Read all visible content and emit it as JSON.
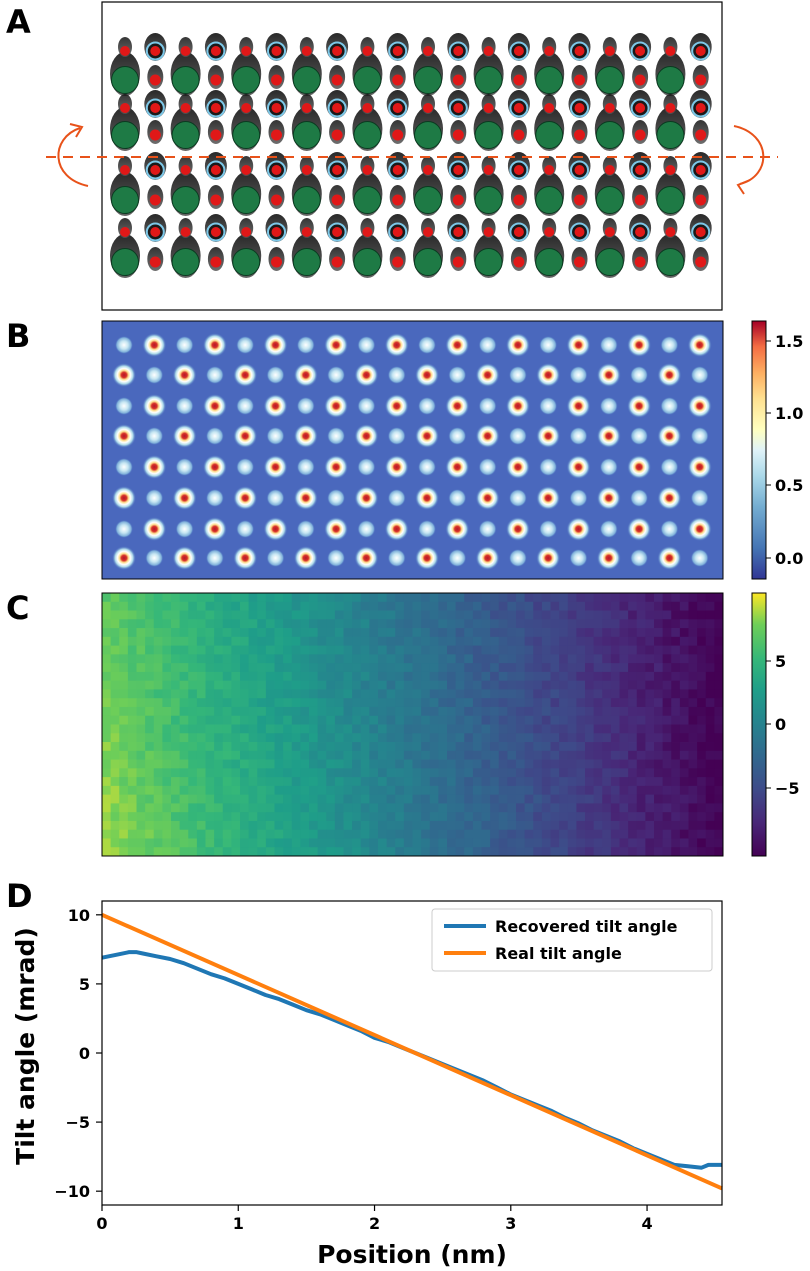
{
  "panels": {
    "a": "A",
    "b": "B",
    "c": "C",
    "d": "D"
  },
  "colors": {
    "atom_large": "#1e7a45",
    "atom_small": "#e01818",
    "atom_ring": "#7dc8e8",
    "rotation_axis": "#e8521a",
    "recovered": "#1f77b4",
    "real": "#ff7f0e"
  },
  "panel_b": {
    "colorbar_ticks": [
      "1.5",
      "1.0",
      "0.5",
      "0.0"
    ],
    "colormap": "RdYlBu_r"
  },
  "panel_c": {
    "colorbar_ticks": [
      "5",
      "0",
      "−5"
    ],
    "colormap": "viridis"
  },
  "chart_data": {
    "type": "line",
    "xlabel": "Position (nm)",
    "ylabel": "Tilt angle (mrad)",
    "xlim": [
      0,
      4.55
    ],
    "ylim": [
      -11,
      11
    ],
    "xticks": [
      "0",
      "1",
      "2",
      "3",
      "4"
    ],
    "yticks": [
      "10",
      "5",
      "0",
      "−5",
      "−10"
    ],
    "legend_position": "top-right",
    "series": [
      {
        "name": "Recovered tilt angle",
        "x": [
          0,
          0.1,
          0.2,
          0.25,
          0.3,
          0.4,
          0.5,
          0.6,
          0.7,
          0.8,
          0.9,
          1.0,
          1.1,
          1.2,
          1.3,
          1.4,
          1.5,
          1.6,
          1.7,
          1.8,
          1.9,
          2.0,
          2.1,
          2.2,
          2.3,
          2.4,
          2.5,
          2.6,
          2.7,
          2.8,
          2.9,
          3.0,
          3.1,
          3.2,
          3.3,
          3.4,
          3.5,
          3.6,
          3.7,
          3.8,
          3.9,
          4.0,
          4.1,
          4.2,
          4.3,
          4.4,
          4.45,
          4.55
        ],
        "y": [
          6.9,
          7.1,
          7.3,
          7.3,
          7.2,
          7.0,
          6.8,
          6.5,
          6.1,
          5.7,
          5.4,
          5.0,
          4.6,
          4.2,
          3.9,
          3.5,
          3.1,
          2.8,
          2.4,
          2.0,
          1.6,
          1.1,
          0.8,
          0.4,
          0.0,
          -0.4,
          -0.8,
          -1.2,
          -1.6,
          -2.0,
          -2.5,
          -3.0,
          -3.4,
          -3.8,
          -4.2,
          -4.7,
          -5.1,
          -5.6,
          -6.0,
          -6.4,
          -6.9,
          -7.3,
          -7.7,
          -8.1,
          -8.2,
          -8.3,
          -8.1,
          -8.1
        ]
      },
      {
        "name": "Real tilt angle",
        "x": [
          0,
          4.55
        ],
        "y": [
          10.0,
          -9.8
        ]
      }
    ]
  }
}
